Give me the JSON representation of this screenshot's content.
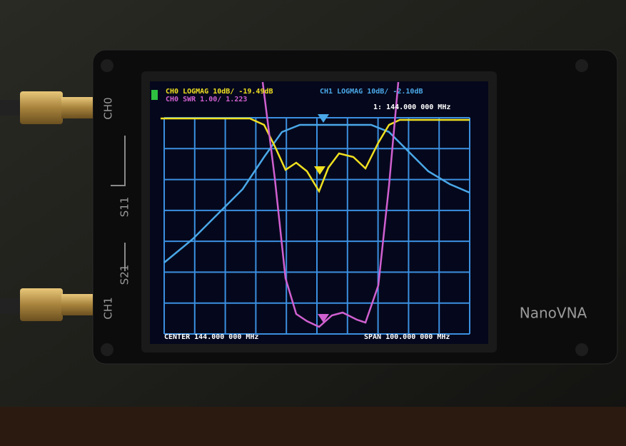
{
  "screen": {
    "trace_labels": [
      "CH0 LOGMAG 10dB/ -19.49dB",
      "CH1 LOGMAG 10dB/ -2.10dB",
      "CH0 SWR 1.00/ 1.223"
    ],
    "marker": "1: 144.000 000 MHz",
    "center": "CENTER 144.000 000 MHz",
    "span": "SPAN 100.000 000 MHz"
  },
  "device": {
    "port_labels": [
      "CH0",
      "S11",
      "S21",
      "CH1"
    ],
    "brand": "NanoVNA"
  }
}
